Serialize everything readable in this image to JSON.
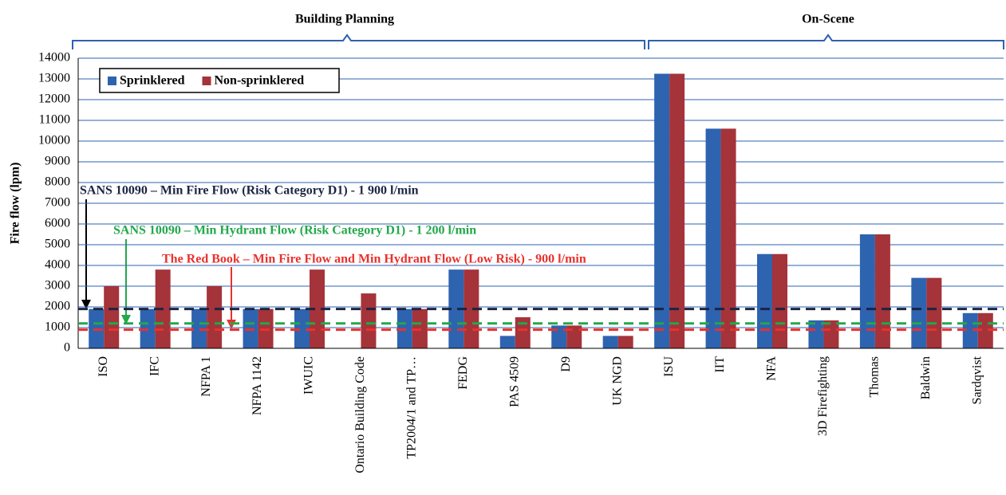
{
  "chart_data": {
    "type": "bar",
    "y_label": "Fire flow (lpm)",
    "groups": [
      "Building Planning",
      "On-Scene"
    ],
    "categories": [
      "ISO",
      "IFC",
      "NFPA 1",
      "NFPA 1142",
      "IWUIC",
      "Ontario Building Code",
      "TP2004/1 and TP…",
      "FEDG",
      "PAS 4509",
      "D9",
      "UK NGD",
      "ISU",
      "IIT",
      "NFA",
      "3D Firefighting",
      "Thomas",
      "Baldwin",
      "Sardqvist"
    ],
    "series": [
      {
        "name": "Sprinklered",
        "color": "#2e63b0",
        "values": [
          1900,
          1900,
          1900,
          1900,
          1900,
          null,
          1900,
          3800,
          600,
          1100,
          600,
          13250,
          10600,
          4550,
          1350,
          5500,
          3400,
          1700
        ]
      },
      {
        "name": "Non-sprinklered",
        "color": "#a5333a",
        "values": [
          3000,
          3800,
          3000,
          1900,
          3800,
          2650,
          1900,
          3800,
          1500,
          1100,
          600,
          13250,
          10600,
          4550,
          1350,
          5500,
          3400,
          1700
        ]
      }
    ],
    "reference_lines": [
      {
        "label": "SANS 10090 – Min Fire Flow (Risk Category D1) - 1 900 l/min",
        "value": 1900,
        "color": "#1c2544"
      },
      {
        "label": "SANS 10090 – Min Hydrant Flow (Risk Category D1) - 1 200 l/min",
        "value": 1200,
        "color": "#22a84a"
      },
      {
        "label": "The Red Book – Min Fire Flow and Min Hydrant Flow  (Low Risk) - 900 l/min",
        "value": 900,
        "color": "#e8322e"
      }
    ],
    "ylim": [
      0,
      14000
    ],
    "yticks": [
      0,
      1000,
      2000,
      3000,
      4000,
      5000,
      6000,
      7000,
      8000,
      9000,
      10000,
      11000,
      12000,
      13000,
      14000
    ],
    "grid": true,
    "legend": "upper left"
  }
}
